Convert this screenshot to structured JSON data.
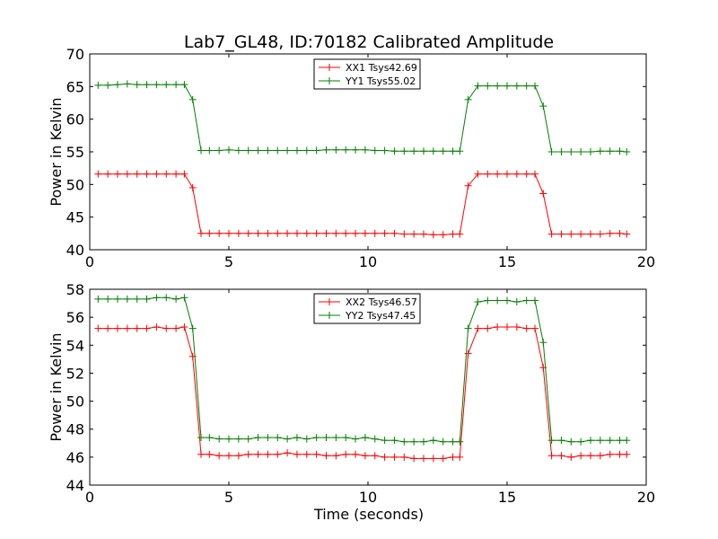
{
  "chart_data": [
    {
      "type": "line",
      "title": "Lab7_GL48, ID:70182 Calibrated Amplitude",
      "xlabel": "",
      "ylabel": "Power in Kelvin",
      "xlim": [
        0,
        20
      ],
      "ylim": [
        40,
        70
      ],
      "xticks": [
        "0",
        "5",
        "10",
        "15",
        "20"
      ],
      "yticks": [
        "40",
        "45",
        "50",
        "55",
        "60",
        "65",
        "70"
      ],
      "legend_position": "upper-center",
      "x": [
        0.3,
        0.65,
        1.0,
        1.35,
        1.7,
        2.05,
        2.4,
        2.75,
        3.1,
        3.4,
        3.7,
        4.0,
        4.3,
        4.65,
        5.0,
        5.35,
        5.7,
        6.05,
        6.4,
        6.75,
        7.1,
        7.45,
        7.8,
        8.15,
        8.5,
        8.85,
        9.2,
        9.55,
        9.9,
        10.25,
        10.6,
        10.95,
        11.3,
        11.65,
        12.0,
        12.35,
        12.7,
        13.05,
        13.3,
        13.6,
        13.95,
        14.3,
        14.65,
        15.0,
        15.35,
        15.7,
        16.0,
        16.3,
        16.6,
        16.95,
        17.3,
        17.65,
        18.0,
        18.35,
        18.7,
        19.05,
        19.3
      ],
      "series": [
        {
          "name": "XX1 Tsys42.69",
          "color": "#ff0000",
          "values": [
            51.6,
            51.6,
            51.6,
            51.6,
            51.6,
            51.6,
            51.6,
            51.6,
            51.6,
            51.6,
            49.5,
            42.5,
            42.5,
            42.5,
            42.5,
            42.5,
            42.5,
            42.5,
            42.5,
            42.5,
            42.5,
            42.5,
            42.5,
            42.5,
            42.5,
            42.5,
            42.5,
            42.5,
            42.5,
            42.5,
            42.5,
            42.5,
            42.4,
            42.4,
            42.4,
            42.3,
            42.3,
            42.4,
            42.4,
            49.8,
            51.6,
            51.6,
            51.6,
            51.6,
            51.6,
            51.6,
            51.6,
            48.6,
            42.4,
            42.4,
            42.4,
            42.4,
            42.4,
            42.4,
            42.5,
            42.5,
            42.4
          ]
        },
        {
          "name": "YY1 Tsys55.02",
          "color": "#008000",
          "values": [
            65.2,
            65.2,
            65.3,
            65.4,
            65.3,
            65.3,
            65.3,
            65.3,
            65.3,
            65.3,
            63.0,
            55.2,
            55.2,
            55.2,
            55.3,
            55.2,
            55.2,
            55.2,
            55.2,
            55.2,
            55.2,
            55.2,
            55.2,
            55.2,
            55.3,
            55.3,
            55.3,
            55.3,
            55.3,
            55.2,
            55.2,
            55.1,
            55.1,
            55.1,
            55.1,
            55.1,
            55.1,
            55.1,
            55.1,
            63.0,
            65.1,
            65.1,
            65.1,
            65.1,
            65.1,
            65.1,
            65.1,
            62.0,
            55.0,
            55.0,
            55.0,
            55.0,
            55.0,
            55.1,
            55.1,
            55.1,
            55.0
          ]
        }
      ]
    },
    {
      "type": "line",
      "title": "",
      "xlabel": "Time (seconds)",
      "ylabel": "Power in Kelvin",
      "xlim": [
        0,
        20
      ],
      "ylim": [
        44,
        58
      ],
      "xticks": [
        "0",
        "5",
        "10",
        "15",
        "20"
      ],
      "yticks": [
        "44",
        "46",
        "48",
        "50",
        "52",
        "54",
        "56",
        "58"
      ],
      "legend_position": "upper-center",
      "x": [
        0.3,
        0.65,
        1.0,
        1.35,
        1.7,
        2.05,
        2.4,
        2.75,
        3.1,
        3.4,
        3.7,
        4.0,
        4.3,
        4.65,
        5.0,
        5.35,
        5.7,
        6.05,
        6.4,
        6.75,
        7.1,
        7.45,
        7.8,
        8.15,
        8.5,
        8.85,
        9.2,
        9.55,
        9.9,
        10.25,
        10.6,
        10.95,
        11.3,
        11.65,
        12.0,
        12.35,
        12.7,
        13.05,
        13.3,
        13.6,
        13.95,
        14.3,
        14.65,
        15.0,
        15.35,
        15.7,
        16.0,
        16.3,
        16.6,
        16.95,
        17.3,
        17.65,
        18.0,
        18.35,
        18.7,
        19.05,
        19.3
      ],
      "series": [
        {
          "name": "XX2 Tsys46.57",
          "color": "#ff0000",
          "values": [
            55.2,
            55.2,
            55.2,
            55.2,
            55.2,
            55.2,
            55.3,
            55.2,
            55.2,
            55.3,
            53.2,
            46.2,
            46.2,
            46.1,
            46.1,
            46.1,
            46.2,
            46.2,
            46.2,
            46.2,
            46.3,
            46.2,
            46.2,
            46.2,
            46.1,
            46.1,
            46.2,
            46.2,
            46.1,
            46.1,
            46.0,
            46.0,
            46.0,
            45.9,
            45.9,
            45.9,
            45.9,
            46.0,
            46.0,
            53.4,
            55.2,
            55.2,
            55.3,
            55.3,
            55.3,
            55.2,
            55.2,
            52.4,
            46.1,
            46.1,
            46.0,
            46.1,
            46.1,
            46.1,
            46.2,
            46.2,
            46.2
          ]
        },
        {
          "name": "YY2 Tsys47.45",
          "color": "#008000",
          "values": [
            57.3,
            57.3,
            57.3,
            57.3,
            57.3,
            57.3,
            57.4,
            57.4,
            57.3,
            57.4,
            55.2,
            47.4,
            47.4,
            47.3,
            47.3,
            47.3,
            47.3,
            47.4,
            47.4,
            47.4,
            47.3,
            47.4,
            47.3,
            47.4,
            47.4,
            47.4,
            47.4,
            47.3,
            47.4,
            47.3,
            47.2,
            47.2,
            47.1,
            47.1,
            47.1,
            47.2,
            47.1,
            47.1,
            47.1,
            55.2,
            57.1,
            57.2,
            57.2,
            57.2,
            57.1,
            57.2,
            57.2,
            54.2,
            47.2,
            47.2,
            47.1,
            47.1,
            47.2,
            47.2,
            47.2,
            47.2,
            47.2
          ]
        }
      ]
    }
  ]
}
